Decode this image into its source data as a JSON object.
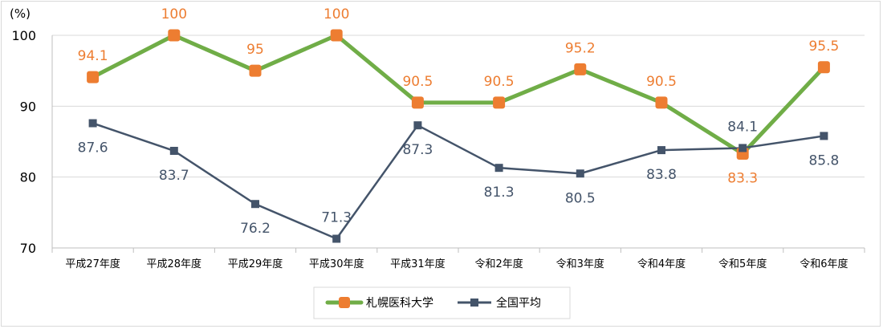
{
  "chart_data": {
    "type": "line",
    "ylabel": "(%)",
    "ylim": [
      70,
      100
    ],
    "yticks": [
      70,
      80,
      90,
      100
    ],
    "grid": true,
    "legend_position": "bottom-center",
    "categories": [
      "平成27年度",
      "平成28年度",
      "平成29年度",
      "平成30年度",
      "平成31年度",
      "令和2年度",
      "令和3年度",
      "令和4年度",
      "令和5年度",
      "令和6年度"
    ],
    "series": [
      {
        "name": "札幌医科大学",
        "color": "#70ad47",
        "marker_color": "#ed7d31",
        "label_color": "#ed7d31",
        "marker": "rounded-square",
        "values": [
          94.1,
          100,
          95,
          100,
          90.5,
          90.5,
          95.2,
          90.5,
          83.3,
          95.5
        ],
        "labels": [
          "94.1",
          "100",
          "95",
          "100",
          "90.5",
          "90.5",
          "95.2",
          "90.5",
          "83.3",
          "95.5"
        ]
      },
      {
        "name": "全国平均",
        "color": "#44546a",
        "marker_color": "#44546a",
        "label_color": "#44546a",
        "marker": "square",
        "values": [
          87.6,
          83.7,
          76.2,
          71.3,
          87.3,
          81.3,
          80.5,
          83.8,
          84.1,
          85.8
        ],
        "labels": [
          "87.6",
          "83.7",
          "76.2",
          "71.3",
          "87.3",
          "81.3",
          "80.5",
          "83.8",
          "84.1",
          "85.8"
        ]
      }
    ]
  }
}
